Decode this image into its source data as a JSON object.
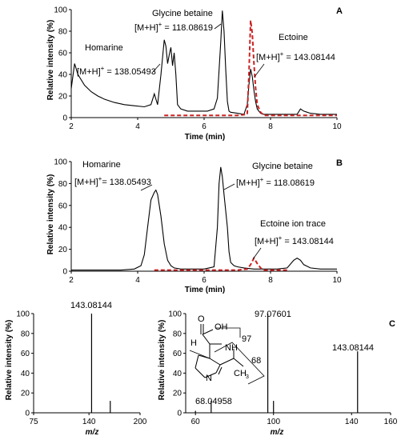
{
  "panels": {
    "A": {
      "label": "A",
      "y_label": "Relative intensity (%)",
      "x_label": "Time (min)",
      "y_ticks": [
        "0",
        "20",
        "40",
        "60",
        "80",
        "100"
      ],
      "x_ticks": [
        "2",
        "4",
        "6",
        "8",
        "10"
      ],
      "annotations": {
        "homarine_name": "Homarine",
        "homarine_mz": "[M+H]+ = 138.05493",
        "glycine_name": "Glycine betaine",
        "glycine_mz": "[M+H]+ = 118.08619",
        "ectoine_name": "Ectoine",
        "ectoine_mz": "[M+H]+ = 143.08144"
      }
    },
    "B": {
      "label": "B",
      "y_label": "Relative intensity (%)",
      "x_label": "Time (min)",
      "y_ticks": [
        "0",
        "20",
        "40",
        "60",
        "80",
        "100"
      ],
      "x_ticks": [
        "2",
        "4",
        "6",
        "8",
        "10"
      ],
      "annotations": {
        "homarine_name": "Homarine",
        "homarine_mz": "[M+H]+= 138.05493",
        "glycine_name": "Glycine betaine",
        "glycine_mz": "[M+H]+ = 118.08619",
        "ectoine_name": "Ectoine ion trace",
        "ectoine_mz": "[M+H]+ = 143.08144"
      }
    },
    "C": {
      "label": "C",
      "left": {
        "y_label": "Relative intensity (%)",
        "x_label": "m/z",
        "y_ticks": [
          "0",
          "20",
          "40",
          "60",
          "80",
          "100"
        ],
        "x_ticks": [
          "75",
          "140",
          "200"
        ],
        "peak_label": "143.08144"
      },
      "right": {
        "y_label": "Relative intensity (%)",
        "x_label": "m/z",
        "y_ticks": [
          "0",
          "20",
          "40",
          "60",
          "80",
          "100"
        ],
        "x_ticks": [
          "60",
          "100",
          "140",
          "160"
        ],
        "peak_labels": [
          "97.07601",
          "143.08144",
          "68.04958"
        ],
        "structure": {
          "cooh": "O",
          "oh": "OH",
          "h": "H",
          "nh": "NH",
          "n": "N",
          "ch3": "CH",
          "ch3_sub": "3",
          "frag97": "97",
          "frag68": "68"
        }
      }
    }
  },
  "chart_data": [
    {
      "type": "line",
      "panel": "A",
      "xlabel": "Time (min)",
      "ylabel": "Relative intensity (%)",
      "xlim": [
        2,
        10
      ],
      "ylim": [
        0,
        100
      ],
      "series": [
        {
          "color": "#000000",
          "style": "solid",
          "x": [
            2.0,
            2.1,
            2.2,
            2.4,
            2.6,
            2.8,
            3.0,
            3.3,
            3.6,
            3.9,
            4.2,
            4.4,
            4.5,
            4.55,
            4.6,
            4.7,
            4.8,
            4.85,
            4.9,
            4.95,
            5.0,
            5.05,
            5.1,
            5.15,
            5.2,
            5.3,
            5.5,
            5.8,
            6.1,
            6.3,
            6.4,
            6.5,
            6.55,
            6.6,
            6.65,
            6.7,
            6.75,
            6.8,
            7.0,
            7.2,
            7.3,
            7.35,
            7.4,
            7.45,
            7.5,
            7.55,
            7.6,
            7.7,
            7.8,
            8.0,
            8.5,
            8.8,
            8.9,
            9.0,
            9.2,
            9.5,
            10.0
          ],
          "y": [
            27,
            50,
            40,
            30,
            24,
            20,
            17,
            14,
            12,
            11,
            10,
            12,
            22,
            17,
            12,
            40,
            72,
            66,
            50,
            58,
            65,
            48,
            60,
            40,
            12,
            8,
            6,
            6,
            6,
            8,
            18,
            70,
            99,
            80,
            45,
            15,
            6,
            5,
            4,
            3,
            12,
            30,
            45,
            38,
            25,
            15,
            8,
            4,
            3,
            3,
            3,
            3,
            8,
            6,
            4,
            3,
            3
          ]
        },
        {
          "color": "#cc2222",
          "style": "dashed",
          "x": [
            4.8,
            5.0,
            6.0,
            7.0,
            7.3,
            7.35,
            7.4,
            7.45,
            7.5,
            7.55,
            7.6,
            7.7,
            7.8,
            8.0,
            10.0
          ],
          "y": [
            2,
            2,
            2,
            2,
            3,
            40,
            90,
            78,
            50,
            28,
            12,
            5,
            2,
            2,
            2
          ],
          "name": "Ectoine"
        }
      ]
    },
    {
      "type": "line",
      "panel": "B",
      "xlabel": "Time (min)",
      "ylabel": "Relative intensity (%)",
      "xlim": [
        2,
        10
      ],
      "ylim": [
        0,
        100
      ],
      "series": [
        {
          "color": "#000000",
          "style": "solid",
          "x": [
            2.0,
            2.5,
            3.0,
            3.5,
            3.9,
            4.1,
            4.2,
            4.3,
            4.4,
            4.5,
            4.55,
            4.6,
            4.7,
            4.8,
            4.9,
            5.0,
            5.1,
            5.3,
            5.6,
            6.0,
            6.3,
            6.4,
            6.45,
            6.5,
            6.55,
            6.6,
            6.65,
            6.7,
            6.75,
            6.8,
            6.9,
            7.0,
            7.2,
            7.5,
            7.8,
            8.0,
            8.2,
            8.5,
            8.7,
            8.8,
            8.9,
            9.0,
            9.2,
            9.5,
            10.0
          ],
          "y": [
            1,
            1,
            1,
            1,
            2,
            5,
            15,
            40,
            65,
            72,
            74,
            70,
            50,
            25,
            10,
            5,
            3,
            2,
            2,
            2,
            4,
            40,
            80,
            95,
            86,
            70,
            55,
            40,
            18,
            8,
            5,
            4,
            3,
            2,
            2,
            2,
            2,
            3,
            10,
            12,
            10,
            6,
            3,
            2,
            2
          ]
        },
        {
          "color": "#cc2222",
          "style": "dashed",
          "x": [
            4.5,
            5.0,
            6.0,
            7.0,
            7.3,
            7.4,
            7.5,
            7.6,
            7.7,
            7.8,
            8.0,
            8.5
          ],
          "y": [
            1,
            1,
            1,
            1,
            2,
            6,
            12,
            7,
            3,
            1,
            1,
            1
          ],
          "name": "Ectoine ion trace"
        }
      ]
    },
    {
      "type": "bar",
      "panel": "C-left",
      "xlabel": "m/z",
      "ylabel": "Relative intensity (%)",
      "xlim": [
        75,
        200
      ],
      "ylim": [
        0,
        100
      ],
      "x": [
        143.08144,
        165
      ],
      "values": [
        100,
        12
      ]
    },
    {
      "type": "bar",
      "panel": "C-right",
      "xlabel": "m/z",
      "ylabel": "Relative intensity (%)",
      "xlim": [
        55,
        160
      ],
      "ylim": [
        0,
        100
      ],
      "x": [
        60,
        68.04958,
        97.07601,
        100,
        143.08144
      ],
      "values": [
        2,
        12,
        100,
        12,
        62
      ]
    }
  ]
}
